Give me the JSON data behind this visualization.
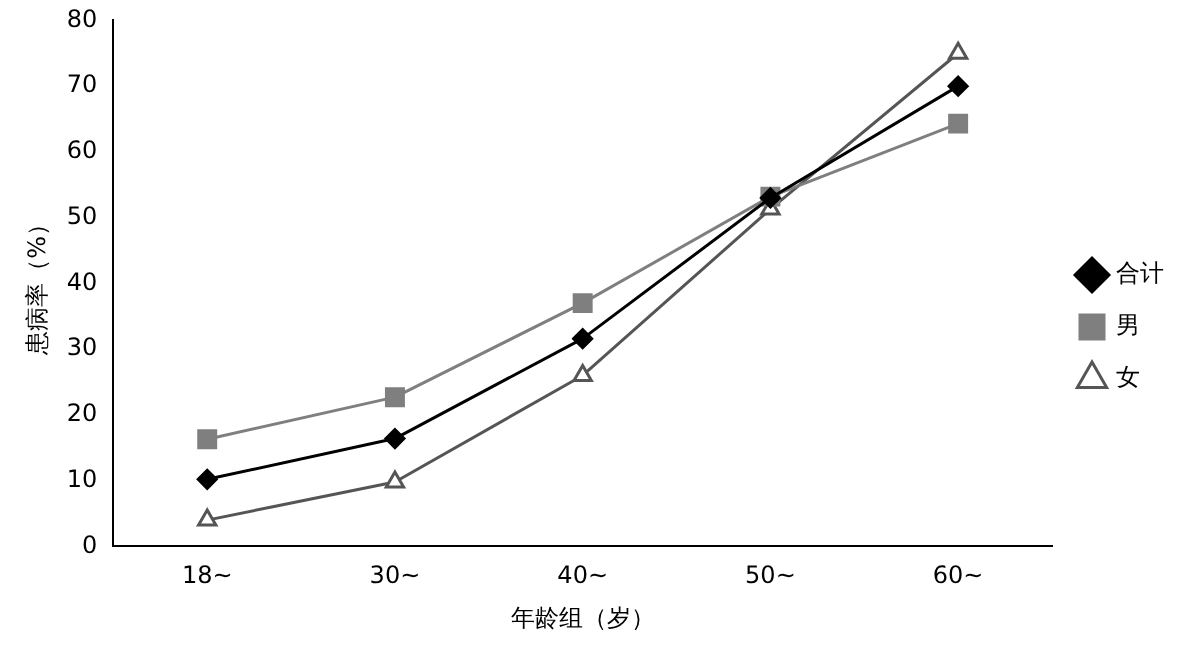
{
  "chart_data": {
    "type": "line",
    "xlabel": "年龄组（岁）",
    "ylabel": "患病率（%）",
    "categories": [
      "18~",
      "30~",
      "40~",
      "50~",
      "60~"
    ],
    "series": [
      {
        "name": "合计",
        "color": "#000000",
        "marker": "diamond",
        "values": [
          10.2,
          16.4,
          31.6,
          53,
          70
        ]
      },
      {
        "name": "男",
        "color": "#7f7f7f",
        "marker": "square",
        "values": [
          16.3,
          22.7,
          37,
          53.2,
          64.3
        ]
      },
      {
        "name": "女",
        "color": "#555555",
        "marker": "triangle",
        "values": [
          4,
          9.8,
          26,
          51.3,
          75
        ]
      }
    ],
    "ylim": [
      0,
      80
    ],
    "yticks": [
      0,
      10,
      20,
      30,
      40,
      50,
      60,
      70,
      80
    ],
    "grid": false,
    "legend": "right"
  }
}
